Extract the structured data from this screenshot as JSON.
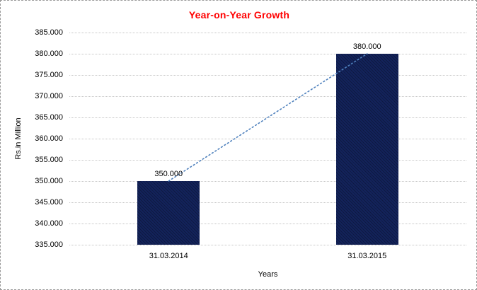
{
  "page": {
    "background": "#FFFFFF",
    "border_color": "#9A9A9A"
  },
  "chart_data": {
    "type": "bar",
    "title": "Year-on-Year Growth",
    "title_color": "#FF0000",
    "xlabel": "Years",
    "ylabel": "Rs.in Million",
    "categories": [
      "31.03.2014",
      "31.03.2015"
    ],
    "values": [
      350,
      380
    ],
    "value_labels": [
      "350.000",
      "380.000"
    ],
    "ylim": [
      335,
      385
    ],
    "ytick_step": 5,
    "yticks": [
      385,
      380,
      375,
      370,
      365,
      360,
      355,
      350,
      345,
      340,
      335
    ],
    "ytick_labels": [
      "385.000",
      "380.000",
      "375.000",
      "370.000",
      "365.000",
      "360.000",
      "355.000",
      "350.000",
      "345.000",
      "340.000",
      "335.000"
    ],
    "bar_color": "#13235B",
    "grid": "horizontal-dotted",
    "gridline_color": "#C6C6C6",
    "legend": "none",
    "trendline": {
      "show": true,
      "style": "dotted",
      "color": "#4F81BD",
      "points": [
        [
          0,
          350
        ],
        [
          1,
          380
        ]
      ]
    }
  }
}
